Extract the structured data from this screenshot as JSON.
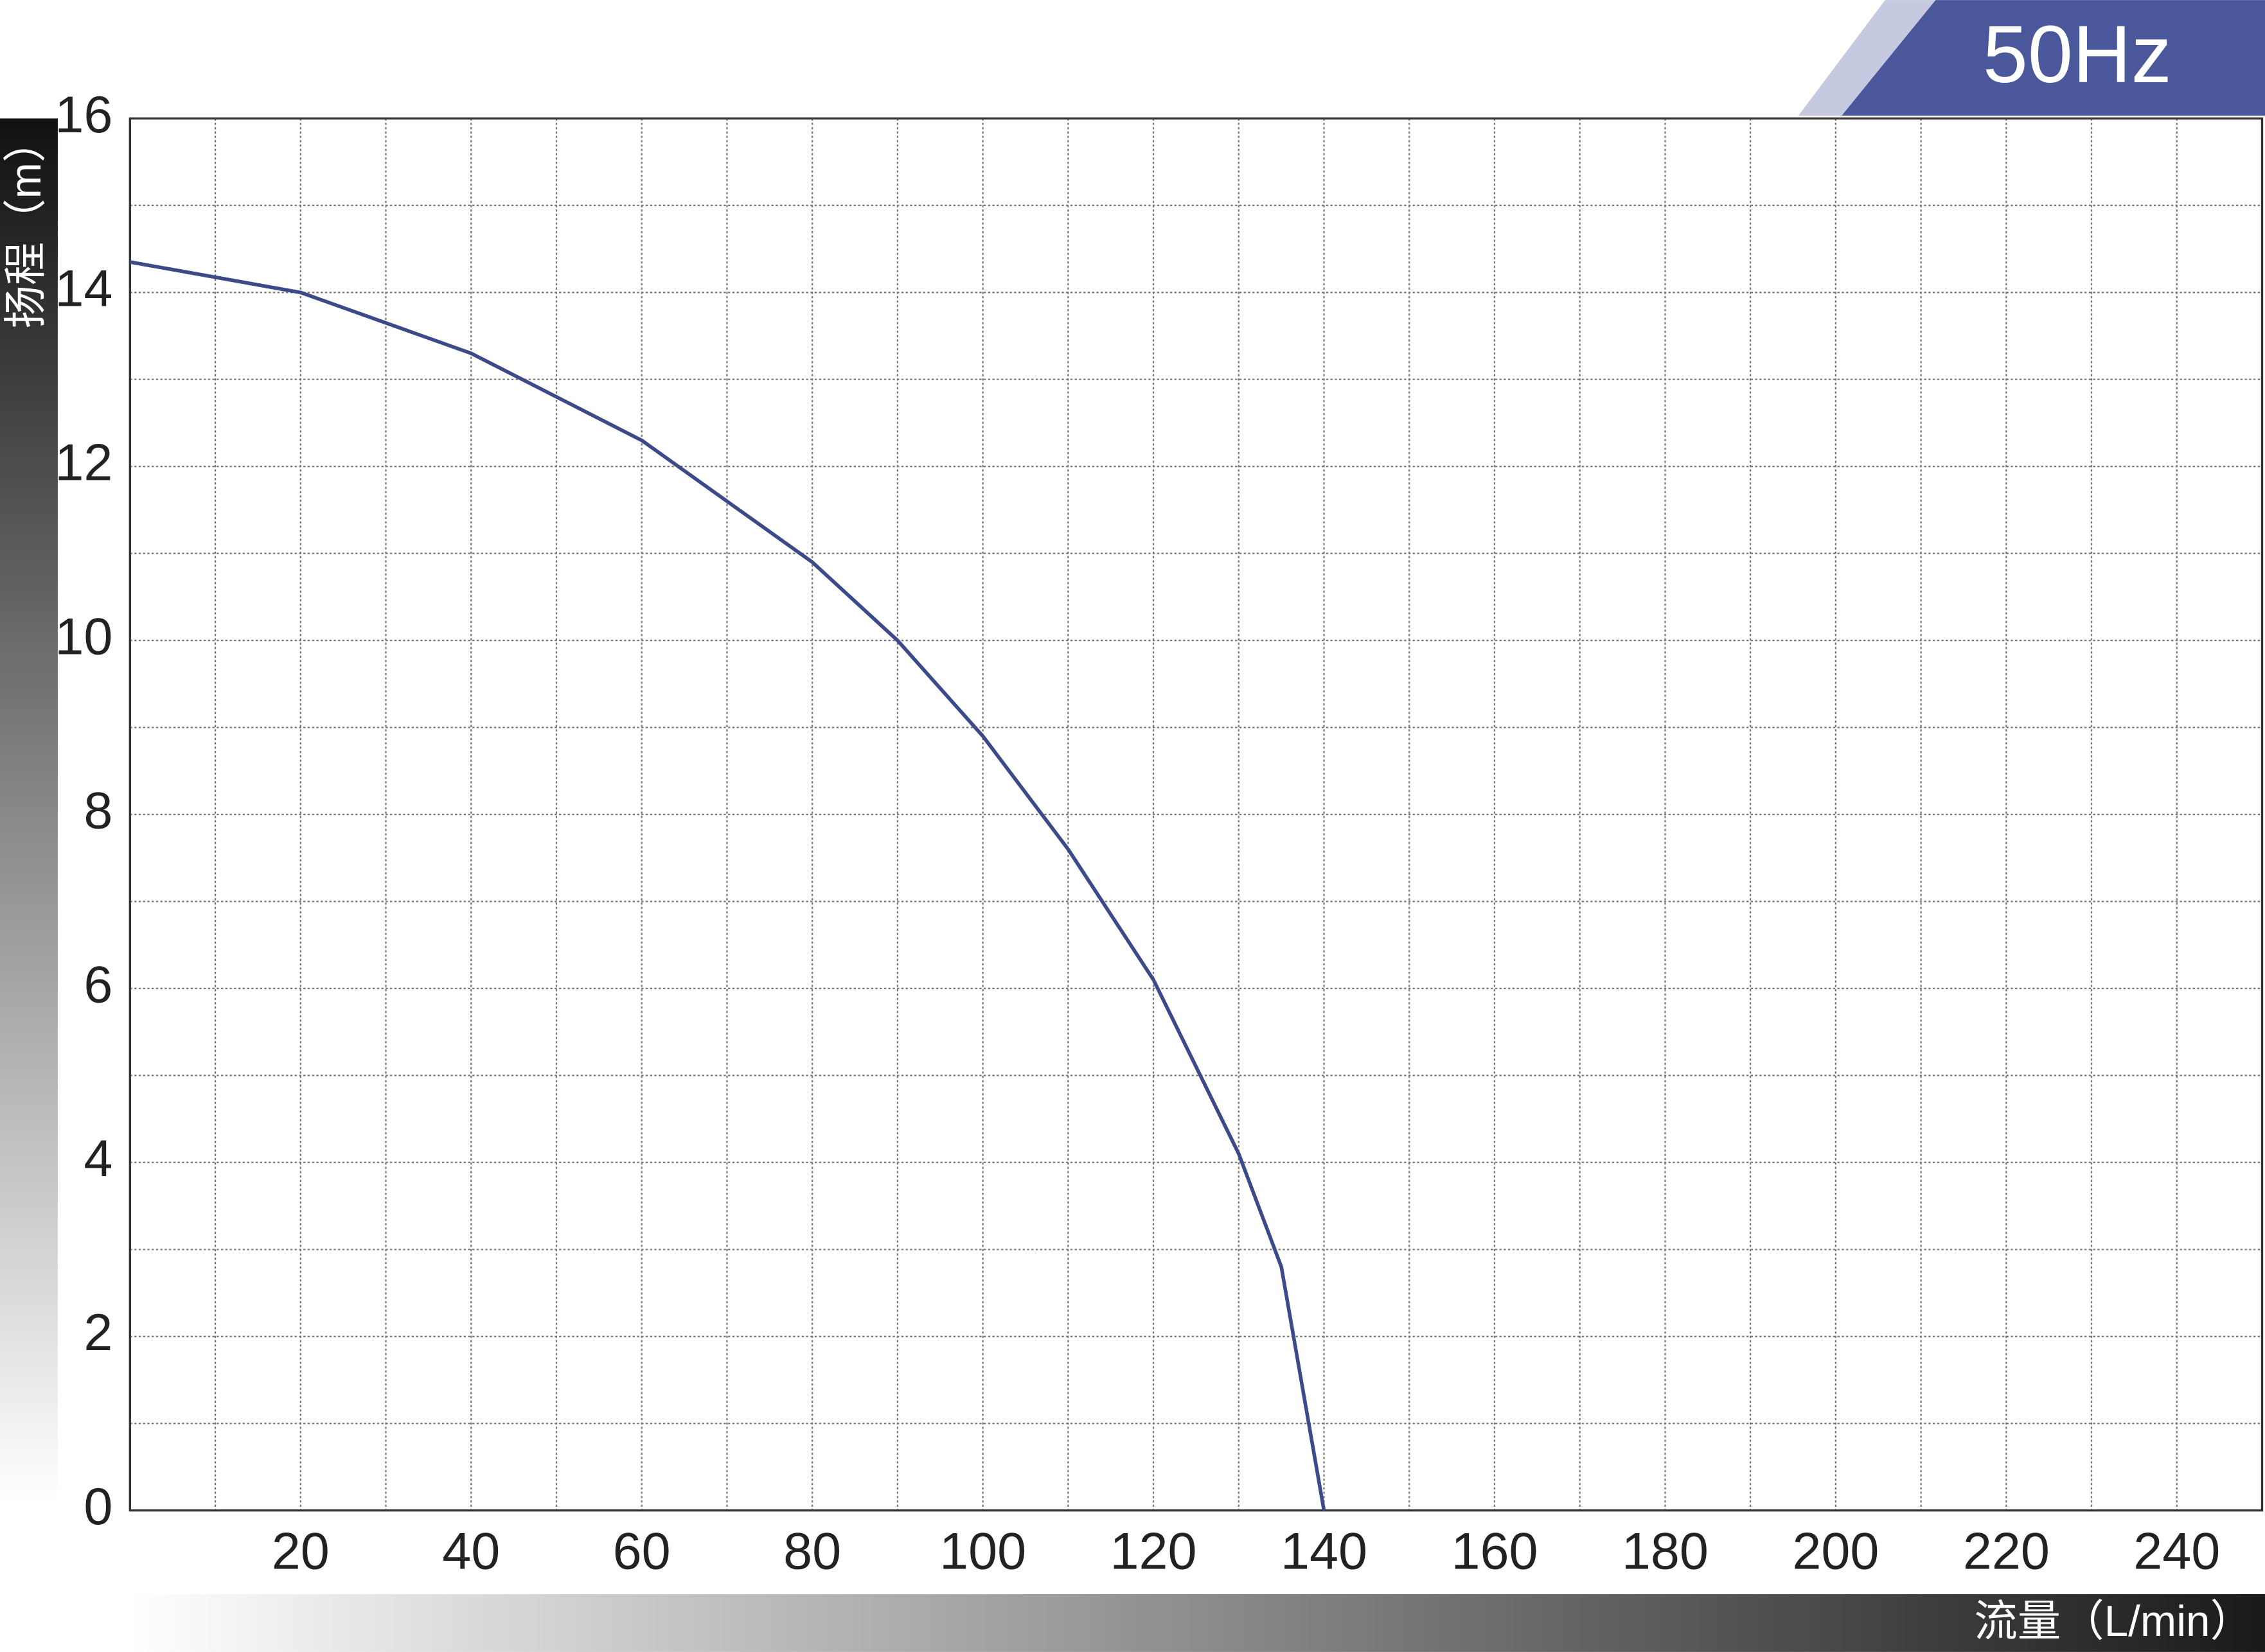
{
  "chart_data": {
    "type": "line",
    "badge": "50Hz",
    "x_label": "流量（L/min）",
    "y_label": "扬程（m）",
    "x": [
      0,
      20,
      40,
      60,
      80,
      90,
      100,
      110,
      120,
      130,
      135,
      140
    ],
    "series": [
      {
        "name": "50Hz",
        "color": "#3d4a8a",
        "values": [
          14.35,
          14.0,
          13.3,
          12.3,
          10.9,
          10.0,
          8.9,
          7.6,
          6.1,
          4.1,
          2.8,
          0
        ]
      }
    ],
    "xlim": [
      0,
      250
    ],
    "ylim": [
      0,
      16
    ],
    "xticks": [
      20,
      40,
      60,
      80,
      100,
      120,
      140,
      160,
      180,
      200,
      220,
      240
    ],
    "yticks": [
      0,
      2,
      4,
      6,
      8,
      10,
      12,
      14,
      16
    ],
    "grid": true
  }
}
